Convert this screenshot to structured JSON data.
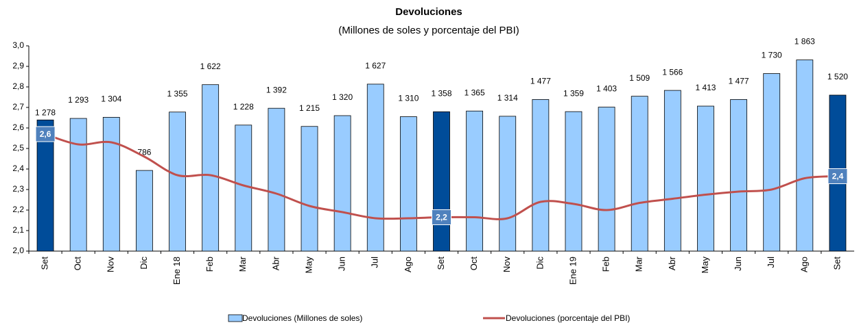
{
  "chart_data": {
    "type": "bar-line",
    "title": "Devoluciones",
    "subtitle": "(Millones de soles y porcentaje del PBI)",
    "categories": [
      "Set",
      "Oct",
      "Nov",
      "Dic",
      "Ene 18",
      "Feb",
      "Mar",
      "Abr",
      "May",
      "Jun",
      "Jul",
      "Ago",
      "Set",
      "Oct",
      "Nov",
      "Dic",
      "Ene 19",
      "Feb",
      "Mar",
      "Abr",
      "May",
      "Jun",
      "Jul",
      "Ago",
      "Set"
    ],
    "ylim": [
      2.0,
      3.0
    ],
    "yticks": [
      {
        "value": 2.0,
        "label": "2,0"
      },
      {
        "value": 2.1,
        "label": "2,1"
      },
      {
        "value": 2.2,
        "label": "2,2"
      },
      {
        "value": 2.3,
        "label": "2,3"
      },
      {
        "value": 2.4,
        "label": "2,4"
      },
      {
        "value": 2.5,
        "label": "2,5"
      },
      {
        "value": 2.6,
        "label": "2,6"
      },
      {
        "value": 2.7,
        "label": "2,7"
      },
      {
        "value": 2.8,
        "label": "2,8"
      },
      {
        "value": 2.9,
        "label": "2,9"
      },
      {
        "value": 3.0,
        "label": "3,0"
      }
    ],
    "y2lim": [
      0,
      2000
    ],
    "series": [
      {
        "name": "Devoluciones (Millones de soles)",
        "type": "bar",
        "axis": "y2",
        "color": "#99ccff",
        "colors": [
          "#004c99",
          "#99ccff",
          "#99ccff",
          "#99ccff",
          "#99ccff",
          "#99ccff",
          "#99ccff",
          "#99ccff",
          "#99ccff",
          "#99ccff",
          "#99ccff",
          "#99ccff",
          "#004c99",
          "#99ccff",
          "#99ccff",
          "#99ccff",
          "#99ccff",
          "#99ccff",
          "#99ccff",
          "#99ccff",
          "#99ccff",
          "#99ccff",
          "#99ccff",
          "#99ccff",
          "#004c99"
        ],
        "values": [
          1278,
          1293,
          1304,
          786,
          1355,
          1622,
          1228,
          1392,
          1215,
          1320,
          1627,
          1310,
          1358,
          1365,
          1314,
          1477,
          1359,
          1403,
          1509,
          1566,
          1413,
          1477,
          1730,
          1863,
          1520
        ],
        "value_labels": [
          "1 278",
          "1 293",
          "1 304",
          "786",
          "1 355",
          "1 622",
          "1 228",
          "1 392",
          "1 215",
          "1 320",
          "1 627",
          "1 310",
          "1 358",
          "1 365",
          "1 314",
          "1 477",
          "1 359",
          "1 403",
          "1 509",
          "1 566",
          "1 413",
          "1 477",
          "1 730",
          "1 863",
          "1 520"
        ]
      },
      {
        "name": "Devoluciones (porcentaje del PBI)",
        "type": "line",
        "color": "#c0504d",
        "values": [
          2.57,
          2.52,
          2.53,
          2.46,
          2.37,
          2.37,
          2.32,
          2.28,
          2.22,
          2.19,
          2.16,
          2.16,
          2.165,
          2.165,
          2.16,
          2.24,
          2.23,
          2.2,
          2.235,
          2.255,
          2.275,
          2.29,
          2.3,
          2.355,
          2.365
        ],
        "value_labels": [
          "2,6",
          null,
          null,
          null,
          null,
          null,
          null,
          null,
          null,
          null,
          null,
          null,
          "2,2",
          null,
          null,
          null,
          null,
          null,
          null,
          null,
          null,
          null,
          null,
          null,
          "2,4"
        ]
      }
    ]
  }
}
